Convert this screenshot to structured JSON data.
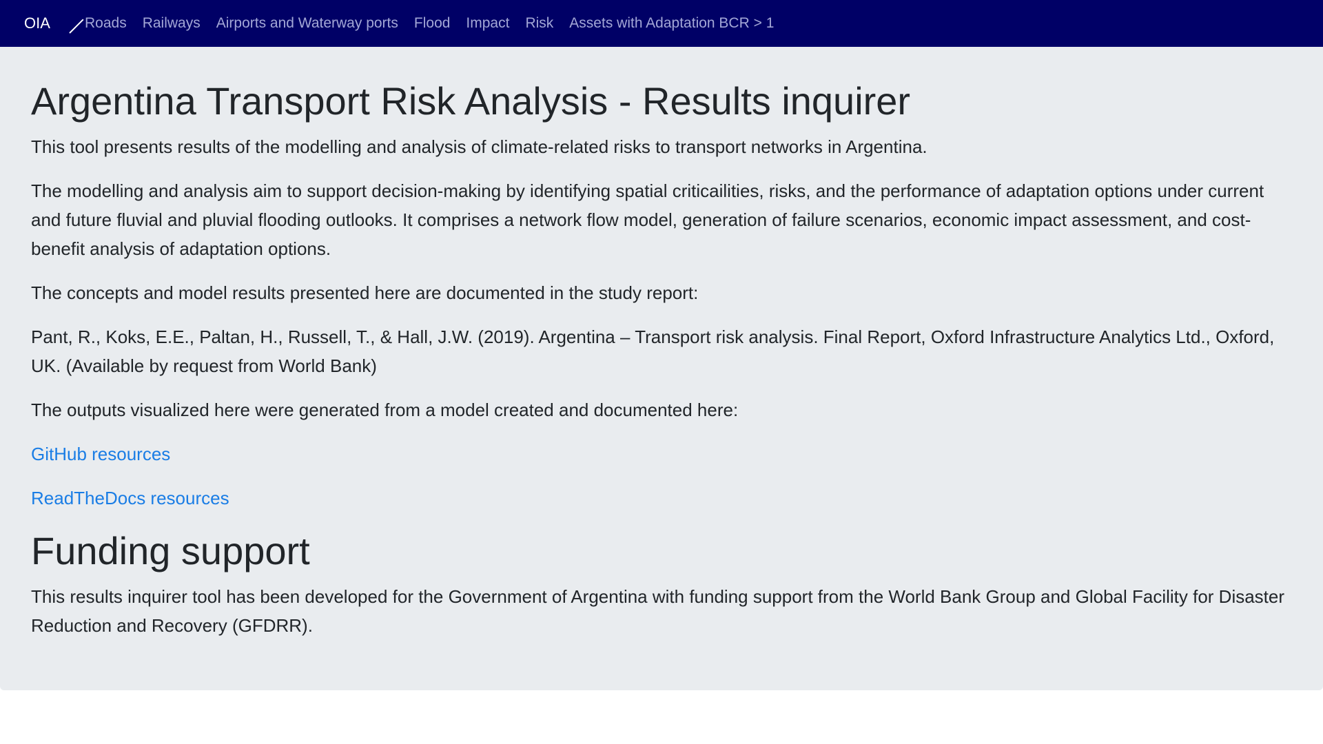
{
  "nav": {
    "brand": "OIA",
    "items": [
      "Roads",
      "Railways",
      "Airports and Waterway ports",
      "Flood",
      "Impact",
      "Risk",
      "Assets with Adaptation BCR > 1"
    ]
  },
  "main": {
    "title": "Argentina Transport Risk Analysis - Results inquirer",
    "intro": "This tool presents results of the modelling and analysis of climate-related risks to transport networks in Argentina.",
    "aim": "The modelling and analysis aim to support decision-making by identifying spatial criticailities, risks, and the performance of adaptation options under current and future fluvial and pluvial flooding outlooks. It comprises a network flow model, generation of failure scenarios, economic impact assessment, and cost-benefit analysis of adaptation options.",
    "concepts": "The concepts and model results presented here are documented in the study report:",
    "citation": "Pant, R., Koks, E.E., Paltan, H., Russell, T., & Hall, J.W. (2019). Argentina – Transport risk analysis. Final Report, Oxford Infrastructure Analytics Ltd., Oxford, UK. (Available by request from World Bank)",
    "outputs": "The outputs visualized here were generated from a model created and documented here:",
    "links": {
      "github": "GitHub resources",
      "readthedocs": "ReadTheDocs resources"
    },
    "funding_title": "Funding support",
    "funding_text": "This results inquirer tool has been developed for the Government of Argentina with funding support from the World Bank Group and Global Facility for Disaster Reduction and Recovery (GFDRR)."
  }
}
